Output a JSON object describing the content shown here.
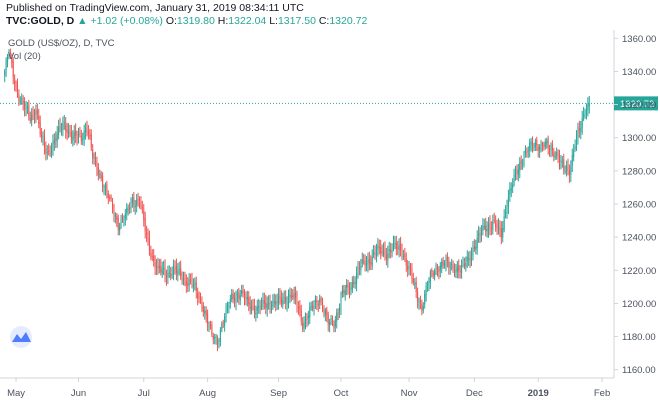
{
  "header": {
    "published": "Published on TradingView.com, January 31, 2019 08:34:11 UTC",
    "symbol": "TVC:GOLD, D",
    "arrow": "▲",
    "change": "+1.02 (+0.08%)",
    "o_label": "O:",
    "o_value": "1319.80",
    "h_label": "H:",
    "h_value": "1322.04",
    "l_label": "L:",
    "l_value": "1317.50",
    "c_label": "C:",
    "c_value": "1320.72"
  },
  "legend": {
    "title": "GOLD (US$/OZ), D, TVC",
    "volume": "Vol (20)"
  },
  "colors": {
    "up": "#26a69a",
    "down": "#ef5350",
    "price_line": "#26a69a",
    "axis": "#4c525e",
    "border": "#d1d4dc"
  },
  "chart_data": {
    "type": "candlestick",
    "title": "GOLD (US$/OZ), D, TVC",
    "ylim": [
      1155,
      1365
    ],
    "y_ticks": [
      1160,
      1180,
      1200,
      1220,
      1240,
      1260,
      1280,
      1300,
      1320,
      1340,
      1360
    ],
    "x_tick_labels": [
      "May",
      "Jun",
      "Jul",
      "Aug",
      "Sep",
      "Oct",
      "Nov",
      "Dec",
      "2019",
      "Feb"
    ],
    "x_tick_index": [
      8,
      52,
      98,
      143,
      193,
      237,
      285,
      331,
      376,
      421
    ],
    "last_price": 1320.72,
    "last_price_label": "1320.72",
    "close_anchors": [
      [
        0,
        1340
      ],
      [
        3,
        1352
      ],
      [
        6,
        1338
      ],
      [
        10,
        1325
      ],
      [
        14,
        1318
      ],
      [
        18,
        1312
      ],
      [
        22,
        1318
      ],
      [
        26,
        1298
      ],
      [
        30,
        1290
      ],
      [
        36,
        1300
      ],
      [
        42,
        1308
      ],
      [
        48,
        1300
      ],
      [
        54,
        1300
      ],
      [
        58,
        1308
      ],
      [
        62,
        1288
      ],
      [
        68,
        1276
      ],
      [
        74,
        1262
      ],
      [
        80,
        1248
      ],
      [
        86,
        1254
      ],
      [
        90,
        1262
      ],
      [
        95,
        1262
      ],
      [
        100,
        1240
      ],
      [
        104,
        1228
      ],
      [
        108,
        1220
      ],
      [
        114,
        1218
      ],
      [
        120,
        1220
      ],
      [
        126,
        1215
      ],
      [
        132,
        1212
      ],
      [
        140,
        1198
      ],
      [
        146,
        1180
      ],
      [
        150,
        1178
      ],
      [
        154,
        1190
      ],
      [
        160,
        1204
      ],
      [
        166,
        1206
      ],
      [
        172,
        1200
      ],
      [
        178,
        1196
      ],
      [
        184,
        1200
      ],
      [
        190,
        1200
      ],
      [
        196,
        1202
      ],
      [
        202,
        1205
      ],
      [
        206,
        1200
      ],
      [
        210,
        1188
      ],
      [
        216,
        1196
      ],
      [
        222,
        1204
      ],
      [
        228,
        1188
      ],
      [
        232,
        1188
      ],
      [
        238,
        1206
      ],
      [
        244,
        1210
      ],
      [
        250,
        1222
      ],
      [
        256,
        1225
      ],
      [
        262,
        1232
      ],
      [
        268,
        1230
      ],
      [
        274,
        1234
      ],
      [
        280,
        1232
      ],
      [
        286,
        1218
      ],
      [
        290,
        1206
      ],
      [
        294,
        1198
      ],
      [
        298,
        1212
      ],
      [
        304,
        1222
      ],
      [
        310,
        1224
      ],
      [
        316,
        1222
      ],
      [
        322,
        1220
      ],
      [
        326,
        1226
      ],
      [
        332,
        1236
      ],
      [
        338,
        1246
      ],
      [
        344,
        1248
      ],
      [
        350,
        1242
      ],
      [
        354,
        1262
      ],
      [
        358,
        1272
      ],
      [
        362,
        1282
      ],
      [
        366,
        1290
      ],
      [
        370,
        1294
      ],
      [
        374,
        1296
      ],
      [
        380,
        1296
      ],
      [
        386,
        1292
      ],
      [
        390,
        1290
      ],
      [
        394,
        1280
      ],
      [
        398,
        1280
      ],
      [
        402,
        1298
      ],
      [
        406,
        1306
      ],
      [
        410,
        1318
      ],
      [
        412,
        1320.72
      ]
    ]
  }
}
